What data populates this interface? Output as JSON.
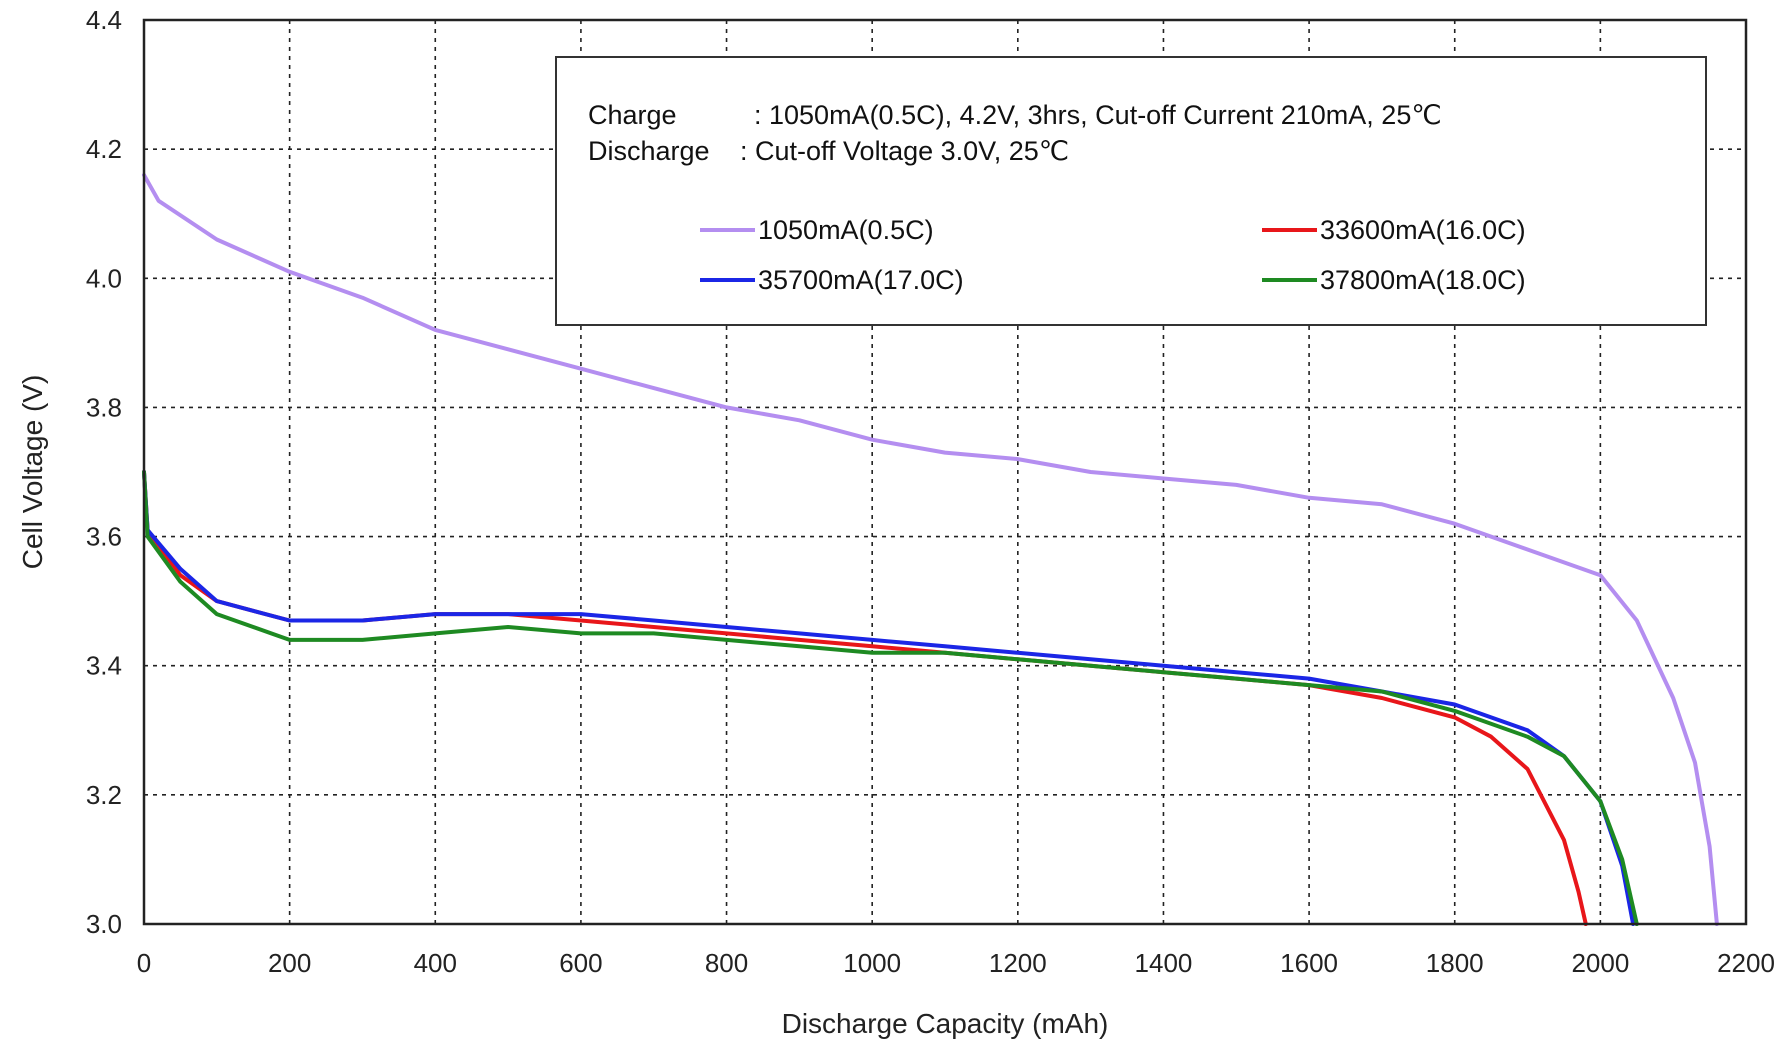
{
  "chart_data": {
    "type": "line",
    "title": "",
    "xlabel": "Discharge Capacity (mAh)",
    "ylabel": "Cell Voltage (V)",
    "xlim": [
      0,
      2200
    ],
    "ylim": [
      3.0,
      4.4
    ],
    "x_ticks": [
      "0",
      "200",
      "400",
      "600",
      "800",
      "1000",
      "1200",
      "1400",
      "1600",
      "1800",
      "2000",
      "2200"
    ],
    "y_ticks": [
      "3.0",
      "3.2",
      "3.4",
      "3.6",
      "3.8",
      "4.0",
      "4.2",
      "4.4"
    ],
    "grid": true,
    "legend_position": "top-right",
    "conditions": {
      "charge_label": "Charge",
      "charge_value": ": 1050mA(0.5C), 4.2V, 3hrs, Cut-off Current 210mA, 25℃",
      "discharge_label": "Discharge",
      "discharge_value": ": Cut-off Voltage 3.0V, 25℃"
    },
    "series": [
      {
        "name": "1050mA(0.5C)",
        "color": "#b48ef0",
        "points": [
          [
            0,
            4.16
          ],
          [
            20,
            4.12
          ],
          [
            100,
            4.06
          ],
          [
            200,
            4.01
          ],
          [
            300,
            3.97
          ],
          [
            400,
            3.92
          ],
          [
            500,
            3.89
          ],
          [
            600,
            3.86
          ],
          [
            700,
            3.83
          ],
          [
            800,
            3.8
          ],
          [
            900,
            3.78
          ],
          [
            1000,
            3.75
          ],
          [
            1100,
            3.73
          ],
          [
            1200,
            3.72
          ],
          [
            1300,
            3.7
          ],
          [
            1400,
            3.69
          ],
          [
            1500,
            3.68
          ],
          [
            1600,
            3.66
          ],
          [
            1700,
            3.65
          ],
          [
            1800,
            3.62
          ],
          [
            1900,
            3.58
          ],
          [
            2000,
            3.54
          ],
          [
            2050,
            3.47
          ],
          [
            2100,
            3.35
          ],
          [
            2130,
            3.25
          ],
          [
            2150,
            3.12
          ],
          [
            2160,
            3.0
          ]
        ]
      },
      {
        "name": "33600mA(16.0C)",
        "color": "#e8161a",
        "points": [
          [
            0,
            3.7
          ],
          [
            5,
            3.61
          ],
          [
            50,
            3.54
          ],
          [
            100,
            3.5
          ],
          [
            200,
            3.47
          ],
          [
            300,
            3.47
          ],
          [
            400,
            3.48
          ],
          [
            500,
            3.48
          ],
          [
            600,
            3.47
          ],
          [
            700,
            3.46
          ],
          [
            800,
            3.45
          ],
          [
            900,
            3.44
          ],
          [
            1000,
            3.43
          ],
          [
            1100,
            3.42
          ],
          [
            1200,
            3.41
          ],
          [
            1300,
            3.4
          ],
          [
            1400,
            3.39
          ],
          [
            1500,
            3.38
          ],
          [
            1600,
            3.37
          ],
          [
            1700,
            3.35
          ],
          [
            1800,
            3.32
          ],
          [
            1850,
            3.29
          ],
          [
            1900,
            3.24
          ],
          [
            1950,
            3.13
          ],
          [
            1970,
            3.05
          ],
          [
            1980,
            3.0
          ]
        ]
      },
      {
        "name": "35700mA(17.0C)",
        "color": "#1b26e6",
        "points": [
          [
            0,
            3.7
          ],
          [
            5,
            3.61
          ],
          [
            50,
            3.55
          ],
          [
            100,
            3.5
          ],
          [
            200,
            3.47
          ],
          [
            300,
            3.47
          ],
          [
            400,
            3.48
          ],
          [
            500,
            3.48
          ],
          [
            600,
            3.48
          ],
          [
            700,
            3.47
          ],
          [
            800,
            3.46
          ],
          [
            900,
            3.45
          ],
          [
            1000,
            3.44
          ],
          [
            1100,
            3.43
          ],
          [
            1200,
            3.42
          ],
          [
            1300,
            3.41
          ],
          [
            1400,
            3.4
          ],
          [
            1500,
            3.39
          ],
          [
            1600,
            3.38
          ],
          [
            1700,
            3.36
          ],
          [
            1800,
            3.34
          ],
          [
            1900,
            3.3
          ],
          [
            1950,
            3.26
          ],
          [
            2000,
            3.19
          ],
          [
            2030,
            3.09
          ],
          [
            2045,
            3.0
          ]
        ]
      },
      {
        "name": "37800mA(18.0C)",
        "color": "#1e8a22",
        "points": [
          [
            0,
            3.7
          ],
          [
            5,
            3.6
          ],
          [
            50,
            3.53
          ],
          [
            100,
            3.48
          ],
          [
            200,
            3.44
          ],
          [
            300,
            3.44
          ],
          [
            400,
            3.45
          ],
          [
            500,
            3.46
          ],
          [
            600,
            3.45
          ],
          [
            700,
            3.45
          ],
          [
            800,
            3.44
          ],
          [
            900,
            3.43
          ],
          [
            1000,
            3.42
          ],
          [
            1100,
            3.42
          ],
          [
            1200,
            3.41
          ],
          [
            1300,
            3.4
          ],
          [
            1400,
            3.39
          ],
          [
            1500,
            3.38
          ],
          [
            1600,
            3.37
          ],
          [
            1700,
            3.36
          ],
          [
            1800,
            3.33
          ],
          [
            1900,
            3.29
          ],
          [
            1950,
            3.26
          ],
          [
            2000,
            3.19
          ],
          [
            2030,
            3.1
          ],
          [
            2050,
            3.0
          ]
        ]
      }
    ]
  }
}
